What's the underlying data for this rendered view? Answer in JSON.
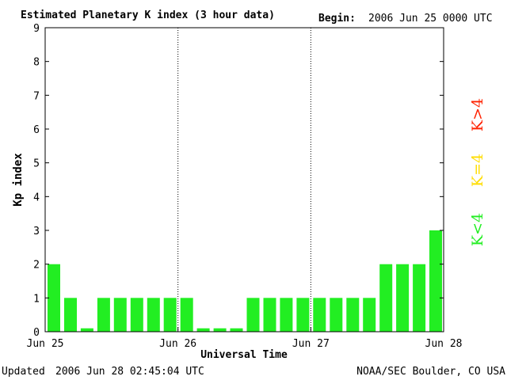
{
  "chart_data": {
    "type": "bar",
    "title": "Estimated Planetary K index (3 hour data)",
    "begin_label": "Begin:",
    "begin_value": "2006 Jun 25 0000 UTC",
    "xlabel": "Universal Time",
    "ylabel": "Kp index",
    "ylim": [
      0,
      9
    ],
    "yticks": [
      "0",
      "1",
      "2",
      "3",
      "4",
      "5",
      "6",
      "7",
      "8",
      "9"
    ],
    "xticks": [
      "Jun 25",
      "Jun 26",
      "Jun 27",
      "Jun 28"
    ],
    "values": [
      2,
      1,
      0,
      1,
      1,
      1,
      1,
      1,
      1,
      0,
      0,
      0,
      1,
      1,
      1,
      1,
      1,
      1,
      1,
      1,
      2,
      2,
      2,
      3
    ],
    "legend": [
      {
        "label": "K<4",
        "color": "#22ee22"
      },
      {
        "label": "K=4",
        "color": "#ffdd00"
      },
      {
        "label": "K>4",
        "color": "#ff2200"
      }
    ],
    "bar_color": "#22ee22"
  },
  "footer": {
    "updated_label": "Updated",
    "updated_value": "2006 Jun 28 02:45:04 UTC",
    "source": "NOAA/SEC Boulder, CO USA"
  }
}
